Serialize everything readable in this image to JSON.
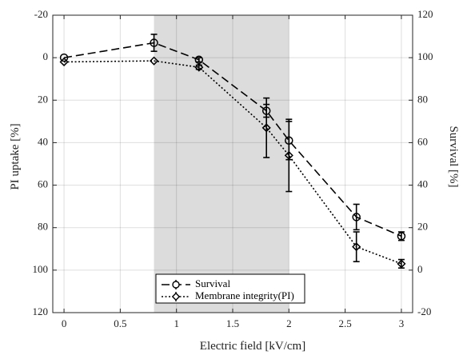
{
  "chart_data": {
    "type": "line",
    "xlabel": "Electric field [kV/cm]",
    "ylabel_left": "PI uptake [%]",
    "ylabel_right": "Survival [%]",
    "xlim": [
      -0.1,
      3.1
    ],
    "ylim_left": [
      120,
      -20
    ],
    "ylim_right": [
      -20,
      120
    ],
    "left_axis_inverted": true,
    "xticks": [
      "0",
      "0.5",
      "1",
      "1.5",
      "2",
      "2.5",
      "3"
    ],
    "yticks_left": [
      "-20",
      "0",
      "20",
      "40",
      "60",
      "80",
      "100",
      "120"
    ],
    "yticks_right": [
      "-20",
      "0",
      "20",
      "40",
      "60",
      "80",
      "100",
      "120"
    ],
    "grid": true,
    "shaded_region": {
      "x_from": 0.8,
      "x_to": 2.0,
      "color": "#dcdcdc"
    },
    "legend_position": "bottom-center",
    "series": [
      {
        "name": "Survival",
        "axis": "right",
        "line_style": "dashed",
        "marker": "circle",
        "x": [
          0,
          0.8,
          1.2,
          1.8,
          2.0,
          2.6,
          3.0
        ],
        "y": [
          100,
          107,
          99,
          75,
          61,
          25,
          16
        ],
        "error": [
          0,
          4,
          1,
          3,
          9,
          6,
          2
        ]
      },
      {
        "name": "Membrane integrity(PI)",
        "axis": "left",
        "line_style": "dotted",
        "marker": "diamond",
        "x": [
          0,
          0.8,
          1.2,
          1.8,
          2.0,
          2.6,
          3.0
        ],
        "y": [
          2,
          1.5,
          4.5,
          33,
          46,
          89,
          97
        ],
        "error": [
          0,
          0,
          1,
          14,
          17,
          7,
          2
        ]
      }
    ]
  }
}
